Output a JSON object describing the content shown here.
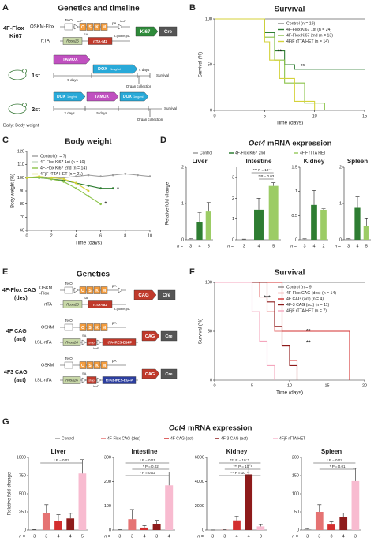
{
  "panel_labels": [
    "A",
    "B",
    "C",
    "D",
    "E",
    "F",
    "G"
  ],
  "diagram_a": {
    "title": "Genetics and timeline",
    "line_label": "4F-Flox",
    "line_label_2": "Ki67",
    "oskm_flox": "OSKM-Flox",
    "rtta": "rtTA",
    "teto": "TetO",
    "factors": [
      "O",
      "S",
      "K",
      "M"
    ],
    "pa": "pA",
    "loxp": "loxP",
    "rosa": "Rosa26",
    "sa": "SA",
    "rtta_m2": "rtTA-M2",
    "bglobin": "β-globin-pA",
    "ki67": "Ki67",
    "cre": "Cre",
    "protocol_1": "1st",
    "protocol_2": "2st",
    "daily": "Daily: Body weight",
    "tamox": "TAMOX",
    "dox": "DOX",
    "dox_dose": "1mg/ml",
    "five_days": "5 days",
    "two_days": "2 days",
    "four_days": "4 days",
    "organ": "Organ collection",
    "survival": "Survival"
  },
  "diagram_e": {
    "title": "Genetics",
    "line_1": "4F-Flox CAG",
    "line_1_sub": "(des)",
    "line_2": "4F CAG",
    "line_2_sub": "(act)",
    "line_3": "4F3 CAG",
    "line_3_sub": "(act)",
    "oskm": "OSKM",
    "flox": "-Flox",
    "rtta": "rtTA",
    "lsl_rtta": "LSL-rtTA",
    "teto": "TetO",
    "factors": [
      "O",
      "S",
      "K",
      "M"
    ],
    "pa": "pA",
    "loxp": "loxP",
    "rosa": "Rosa26",
    "sa": "SA",
    "rtta_m2": "rtTA-M2",
    "bglobin": "β-globin-pA",
    "cag": "CAG",
    "cre": "Cre",
    "stop": "stop",
    "rtta_ires": "rtTA-IRES-EGFP",
    "rtta3_ires": "rtTA3-IRES-EGFP"
  },
  "panel_d": {
    "title_gene": "Oct4",
    "title_rest": "mRNA expression",
    "legend": [
      {
        "name": "Control",
        "color": "#9e9e9e"
      },
      {
        "name": "4F-Flox Ki67 2nd",
        "color": "#2e7d32"
      },
      {
        "name": "4FjF rTTA HET",
        "color": "#9ccc65"
      }
    ]
  },
  "panel_g": {
    "title_gene": "Oct4",
    "title_rest": "mRNA expression",
    "legend": [
      {
        "name": "Control",
        "color": "#9e9e9e"
      },
      {
        "name": "4F-Flox CAG (des)",
        "color": "#e57373"
      },
      {
        "name": "4F CAG (act)",
        "color": "#d32f2f"
      },
      {
        "name": "4F-3 CAG (act)",
        "color": "#8e1b1b"
      },
      {
        "name": "4FjF rTTA HET",
        "color": "#f8bbd0"
      }
    ]
  },
  "chart_data": [
    {
      "type": "line",
      "title": "Survival",
      "xlabel": "Time (days)",
      "ylabel": "Survival (%)",
      "xlim": [
        0,
        15
      ],
      "xticks": [
        0,
        5,
        10,
        15
      ],
      "ylim": [
        0,
        100
      ],
      "yticks": [
        0,
        50,
        100
      ],
      "legend": "upper right",
      "series": [
        {
          "name": "Control (n = 19)",
          "color": "#8a8a8a",
          "x": [
            0,
            15
          ],
          "values": [
            100,
            100
          ]
        },
        {
          "name": "4F-Flox Ki67 1st (n = 24)",
          "color": "#2e7d32",
          "x": [
            0,
            5,
            5,
            6,
            6,
            7,
            7,
            8,
            8,
            15
          ],
          "values": [
            100,
            100,
            85,
            85,
            65,
            65,
            50,
            50,
            45,
            45
          ]
        },
        {
          "name": "4F-Flox Ki67 2nd (n = 13)",
          "color": "#8bc34a",
          "x": [
            0,
            5,
            5,
            6,
            6,
            7,
            7,
            9,
            9,
            11,
            11
          ],
          "values": [
            100,
            100,
            80,
            80,
            55,
            55,
            30,
            30,
            8,
            8,
            0
          ]
        },
        {
          "name": "4FjF rTTA HET (n = 14)",
          "color": "#d4d23a",
          "x": [
            0,
            5,
            5,
            5.5,
            5.5,
            6.5,
            6.5,
            8,
            8,
            10,
            10
          ],
          "values": [
            100,
            100,
            75,
            75,
            55,
            55,
            35,
            35,
            10,
            10,
            0
          ]
        }
      ],
      "annotations": [
        "**",
        "**"
      ]
    },
    {
      "type": "line",
      "title": "Body weight",
      "xlabel": "Time (days)",
      "ylabel": "Body weight (%)",
      "xlim": [
        0,
        10
      ],
      "xticks": [
        0,
        2,
        4,
        6,
        8,
        10
      ],
      "ylim": [
        60,
        120
      ],
      "yticks": [
        60,
        70,
        80,
        90,
        100,
        110,
        120
      ],
      "legend": "upper left",
      "markers": true,
      "series": [
        {
          "name": "Control (n = 7)",
          "color": "#9e9e9e",
          "x": [
            0,
            1,
            2,
            3,
            4,
            5,
            6,
            7,
            8,
            9,
            10
          ],
          "values": [
            100,
            100,
            100,
            100,
            101,
            102,
            101,
            102,
            103,
            102,
            101
          ]
        },
        {
          "name": "4F-Flox Ki67 1st (n = 10)",
          "color": "#2e7d32",
          "x": [
            0,
            1,
            2,
            3,
            4,
            5,
            6,
            7
          ],
          "values": [
            100,
            100,
            99,
            98,
            96,
            94,
            92,
            92
          ]
        },
        {
          "name": "4F-Flox Ki67 2nd (n = 14)",
          "color": "#8bc34a",
          "x": [
            0,
            1,
            2,
            3,
            4,
            5,
            6
          ],
          "values": [
            100,
            100,
            99,
            97,
            92,
            86,
            80
          ]
        },
        {
          "name": "4FjF rTTA HET (n = 21)",
          "color": "#d4d23a",
          "x": [
            0,
            1,
            2,
            3,
            4,
            5
          ],
          "values": [
            100,
            101,
            100,
            99,
            96,
            90
          ]
        }
      ],
      "annotations": [
        "*",
        "*"
      ]
    },
    {
      "type": "bar",
      "title": "Liver",
      "ylabel": "Relative fold change",
      "n_label": "n =",
      "categories": [
        3,
        4,
        5
      ],
      "values": [
        0.02,
        0.5,
        0.78
      ],
      "errors": [
        0.01,
        0.25,
        0.25
      ],
      "colors": [
        "#9e9e9e",
        "#2e7d32",
        "#9ccc65"
      ],
      "ylim": [
        0,
        2
      ],
      "yticks": [
        0,
        1,
        2
      ],
      "annotations": []
    },
    {
      "type": "bar",
      "title": "Intestine",
      "n_label": "n =",
      "categories": [
        3,
        4,
        5
      ],
      "values": [
        0.02,
        1.45,
        2.6
      ],
      "errors": [
        0.01,
        0.55,
        0.15
      ],
      "colors": [
        "#9e9e9e",
        "#2e7d32",
        "#9ccc65"
      ],
      "ylim": [
        0,
        3.5
      ],
      "yticks": [
        0,
        1,
        2,
        3
      ],
      "annotations": [
        "*** P = 10⁻⁶",
        "* P = 0.03"
      ]
    },
    {
      "type": "bar",
      "title": "Kidney",
      "n_label": "n =",
      "categories": [
        3,
        4,
        2
      ],
      "values": [
        0.01,
        0.72,
        0.62
      ],
      "errors": [
        0.01,
        0.3,
        0.02
      ],
      "colors": [
        "#9e9e9e",
        "#2e7d32",
        "#9ccc65"
      ],
      "ylim": [
        0,
        1.5
      ],
      "yticks": [
        0,
        0.5,
        1,
        1.5
      ],
      "annotations": []
    },
    {
      "type": "bar",
      "title": "Spleen",
      "n_label": "n =",
      "categories": [
        3,
        4,
        5
      ],
      "values": [
        0.02,
        0.88,
        0.38
      ],
      "errors": [
        0.01,
        0.3,
        0.2
      ],
      "colors": [
        "#9e9e9e",
        "#2e7d32",
        "#9ccc65"
      ],
      "ylim": [
        0,
        2
      ],
      "yticks": [
        0,
        1,
        2
      ],
      "annotations": []
    },
    {
      "type": "line",
      "title": "Survival",
      "xlabel": "Time (days)",
      "ylabel": "Survival (%)",
      "xlim": [
        0,
        20
      ],
      "xticks": [
        0,
        5,
        10,
        15,
        20
      ],
      "ylim": [
        0,
        100
      ],
      "yticks": [
        0,
        50,
        100
      ],
      "legend": "upper right",
      "series": [
        {
          "name": "Control (n = 9)",
          "color": "#8a8a8a",
          "x": [
            0,
            20
          ],
          "values": [
            100,
            100
          ]
        },
        {
          "name": "4F-Flox CAG (des) (n = 14)",
          "color": "#e57373",
          "x": [
            0,
            6,
            6,
            7,
            7,
            8,
            8,
            9,
            9,
            10,
            10,
            11,
            11
          ],
          "values": [
            100,
            100,
            85,
            85,
            70,
            70,
            50,
            50,
            35,
            35,
            20,
            20,
            0
          ]
        },
        {
          "name": "4F CAG (act) (n = 4)",
          "color": "#d32f2f",
          "x": [
            0,
            9,
            9,
            18,
            18
          ],
          "values": [
            100,
            100,
            50,
            50,
            0
          ]
        },
        {
          "name": "4F-3 CAG (act) (n = 11)",
          "color": "#8e1b1b",
          "x": [
            0,
            7,
            7,
            8,
            8,
            9,
            9,
            10,
            10,
            11,
            11
          ],
          "values": [
            100,
            100,
            80,
            80,
            55,
            55,
            35,
            35,
            15,
            15,
            0
          ]
        },
        {
          "name": "4FjF rTTA HET (n = 7)",
          "color": "#f4a6bd",
          "x": [
            0,
            5,
            5,
            6,
            6,
            7,
            7,
            8,
            8
          ],
          "values": [
            100,
            100,
            70,
            70,
            40,
            40,
            15,
            15,
            0
          ]
        }
      ],
      "annotations": [
        "***",
        "**",
        "**"
      ]
    },
    {
      "type": "bar",
      "title": "Liver",
      "ylabel": "Relative fold change",
      "n_label": "n =",
      "categories": [
        3,
        3,
        4,
        4,
        5
      ],
      "values": [
        5,
        230,
        130,
        160,
        780
      ],
      "errors": [
        3,
        120,
        80,
        70,
        190
      ],
      "colors": [
        "#9e9e9e",
        "#e57373",
        "#d32f2f",
        "#8e1b1b",
        "#f8bbd0"
      ],
      "ylim": [
        0,
        1000
      ],
      "yticks": [
        0,
        250,
        500,
        750,
        1000
      ],
      "annotations": [
        "* P = 0.03"
      ]
    },
    {
      "type": "bar",
      "title": "Intestine",
      "n_label": "n =",
      "categories": [
        3,
        3,
        4,
        3,
        4
      ],
      "values": [
        1,
        45,
        10,
        25,
        185
      ],
      "errors": [
        1,
        40,
        8,
        15,
        55
      ],
      "colors": [
        "#9e9e9e",
        "#e57373",
        "#d32f2f",
        "#8e1b1b",
        "#f8bbd0"
      ],
      "ylim": [
        0,
        300
      ],
      "yticks": [
        0,
        100,
        200,
        300
      ],
      "annotations": [
        "* P = 0.01",
        "* P = 0.02",
        "* P = 0.02"
      ]
    },
    {
      "type": "bar",
      "title": "Kidney",
      "n_label": "n =",
      "categories": [
        3,
        3,
        4,
        4,
        3
      ],
      "values": [
        2,
        20,
        800,
        4600,
        300
      ],
      "errors": [
        1,
        10,
        350,
        800,
        150
      ],
      "colors": [
        "#9e9e9e",
        "#e57373",
        "#d32f2f",
        "#8e1b1b",
        "#f8bbd0"
      ],
      "ylim": [
        0,
        6000
      ],
      "yticks": [
        0,
        2000,
        4000,
        6000
      ],
      "annotations": [
        "*** P = 10⁻⁵",
        "*** P = 10⁻⁴",
        "*** P = 10⁻¹⁰"
      ]
    },
    {
      "type": "bar",
      "title": "Spleen",
      "n_label": "n =",
      "categories": [
        3,
        3,
        3,
        4,
        3
      ],
      "values": [
        2,
        50,
        15,
        35,
        135
      ],
      "errors": [
        1,
        20,
        8,
        12,
        35
      ],
      "colors": [
        "#9e9e9e",
        "#e57373",
        "#d32f2f",
        "#8e1b1b",
        "#f8bbd0"
      ],
      "ylim": [
        0,
        200
      ],
      "yticks": [
        0,
        50,
        100,
        150,
        200
      ],
      "annotations": [
        "* P = 0.02",
        "* P = 0.01"
      ]
    }
  ]
}
